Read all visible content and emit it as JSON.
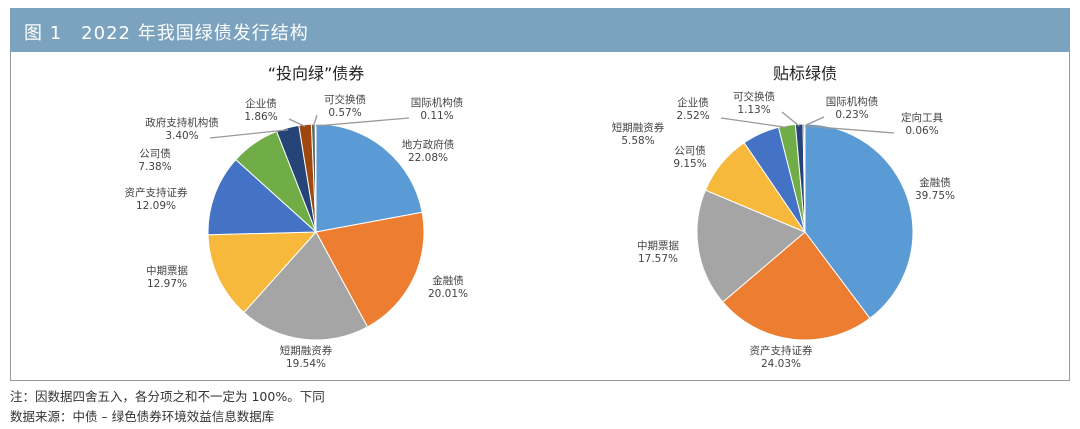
{
  "figure_title": "图 1　2022 年我国绿债发行结构",
  "notes": [
    "注：因数据四舍五入，各分项之和不一定为 100%。下同",
    "数据来源：中债 – 绿色债券环境效益信息数据库"
  ],
  "chart_data": [
    {
      "type": "pie",
      "title": "“投向绿”债券",
      "categories": [
        "地方政府债",
        "金融债",
        "短期融资券",
        "中期票据",
        "资产支持证券",
        "公司债",
        "政府支持机构债",
        "企业债",
        "可交换债",
        "国际机构债"
      ],
      "values": [
        22.08,
        20.01,
        19.54,
        12.97,
        12.09,
        7.38,
        3.4,
        1.86,
        0.57,
        0.11
      ],
      "labels": [
        "22.08%",
        "20.01%",
        "19.54%",
        "12.97%",
        "12.09%",
        "7.38%",
        "3.40%",
        "1.86%",
        "0.57%",
        "0.11%"
      ],
      "colors": [
        "#5b9bd5",
        "#ed7d31",
        "#a5a5a5",
        "#f6b93b",
        "#4472c4",
        "#70ad47",
        "#264478",
        "#9e480e",
        "#636363",
        "#997300"
      ]
    },
    {
      "type": "pie",
      "title": "贴标绿债",
      "categories": [
        "金融债",
        "资产支持证券",
        "中期票据",
        "公司债",
        "短期融资券",
        "企业债",
        "可交换债",
        "国际机构债",
        "定向工具"
      ],
      "values": [
        39.75,
        24.03,
        17.57,
        9.15,
        5.58,
        2.52,
        1.13,
        0.23,
        0.06
      ],
      "labels": [
        "39.75%",
        "24.03%",
        "17.57%",
        "9.15%",
        "5.58%",
        "2.52%",
        "1.13%",
        "0.23%",
        "0.06%"
      ],
      "colors": [
        "#5b9bd5",
        "#ed7d31",
        "#a5a5a5",
        "#f6b93b",
        "#4472c4",
        "#70ad47",
        "#264478",
        "#9e480e",
        "#636363"
      ]
    }
  ]
}
